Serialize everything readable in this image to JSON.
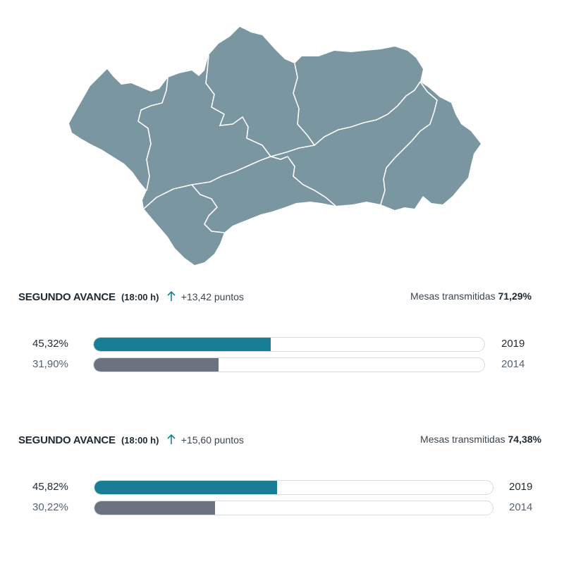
{
  "map": {
    "region": "Andalucía",
    "fill_color": "#7a96a0",
    "border_color": "#ffffff"
  },
  "colors": {
    "current_bar": "#1a7d96",
    "previous_bar": "#6b7380",
    "accent_arrow": "#1a7d96"
  },
  "avances": [
    {
      "title": "SEGUNDO AVANCE",
      "time": "(18:00 h)",
      "change_icon": "arrow-up-icon",
      "change": "+13,42 puntos",
      "mesas_label": "Mesas transmitidas",
      "mesas_value": "71,29%",
      "rows": [
        {
          "pct_label": "45,32%",
          "value": 45.32,
          "year": "2019"
        },
        {
          "pct_label": "31,90%",
          "value": 31.9,
          "year": "2014"
        }
      ]
    },
    {
      "title": "SEGUNDO AVANCE",
      "time": "(18:00 h)",
      "change_icon": "arrow-up-icon",
      "change": "+15,60 puntos",
      "mesas_label": "Mesas transmitidas",
      "mesas_value": "74,38%",
      "rows": [
        {
          "pct_label": "45,82%",
          "value": 45.82,
          "year": "2019"
        },
        {
          "pct_label": "30,22%",
          "value": 30.22,
          "year": "2014"
        }
      ]
    }
  ]
}
